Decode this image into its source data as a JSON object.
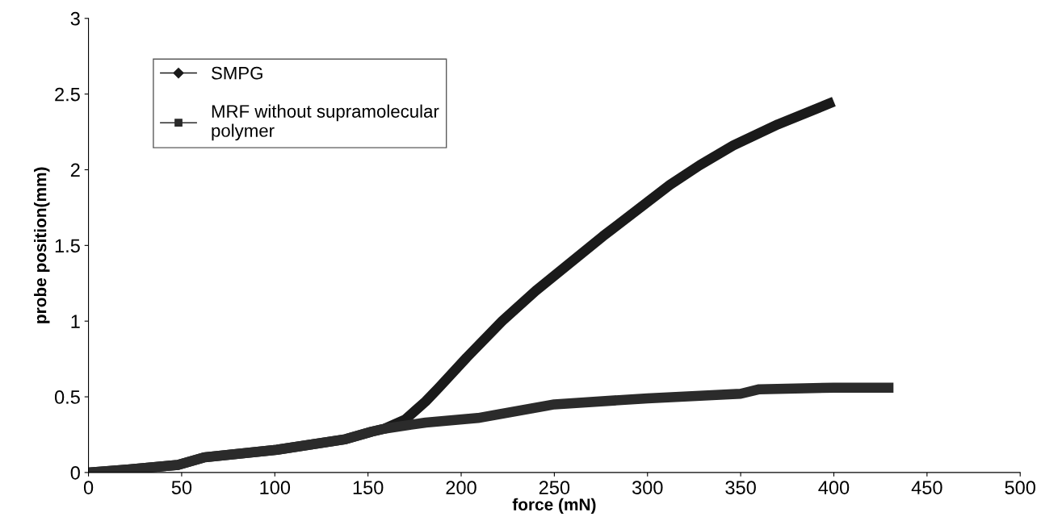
{
  "chart_data": {
    "type": "line",
    "xlabel": "force (mN)",
    "ylabel": "probe position(mm)",
    "xlim": [
      0,
      500
    ],
    "xticks": [
      0,
      50,
      100,
      150,
      200,
      250,
      300,
      350,
      400,
      450,
      500
    ],
    "ylim": [
      0,
      3
    ],
    "yticks": [
      0,
      0.5,
      1,
      1.5,
      2,
      2.5,
      3
    ],
    "grid": false,
    "legend": "top left",
    "marker": "none",
    "line_style": "solid",
    "series": [
      {
        "name": "SMPG",
        "color": "#1a1a1a",
        "x": [
          0,
          21,
          48,
          62,
          101,
          138,
          152,
          159,
          170,
          181,
          188,
          203,
          222,
          240,
          276,
          312,
          328,
          346,
          370,
          400
        ],
        "values": [
          0,
          0.02,
          0.05,
          0.1,
          0.15,
          0.22,
          0.27,
          0.29,
          0.35,
          0.47,
          0.56,
          0.76,
          1.0,
          1.2,
          1.56,
          1.9,
          2.03,
          2.16,
          2.3,
          2.45
        ]
      },
      {
        "name": "MRF without supramolecular\npolymer",
        "color": "#2b2b2b",
        "x": [
          0,
          21,
          48,
          62,
          101,
          138,
          152,
          159,
          181,
          209,
          250,
          300,
          350,
          360,
          400,
          432
        ],
        "values": [
          0,
          0.02,
          0.05,
          0.1,
          0.15,
          0.22,
          0.27,
          0.29,
          0.33,
          0.36,
          0.45,
          0.49,
          0.52,
          0.55,
          0.56,
          0.56
        ]
      }
    ]
  }
}
